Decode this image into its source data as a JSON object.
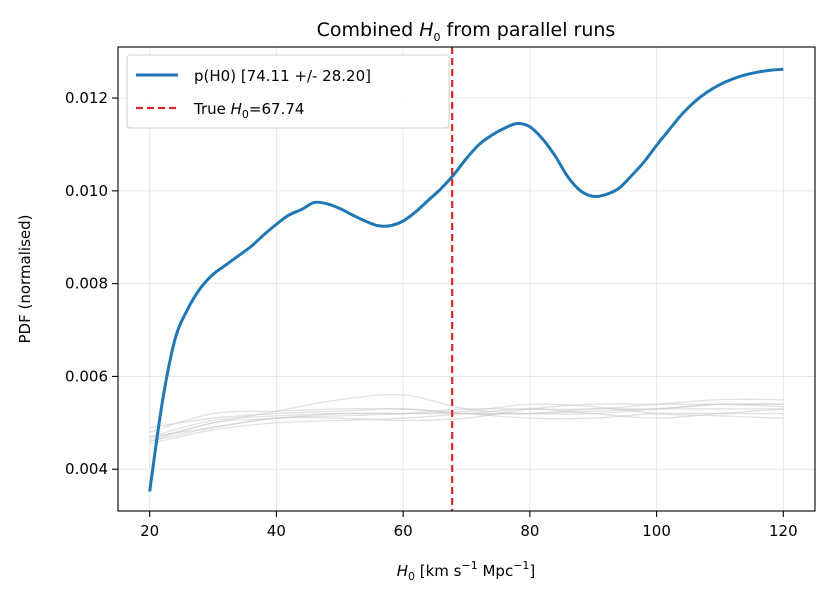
{
  "chart_data": {
    "type": "line",
    "title": {
      "prefix": "Combined ",
      "symbol": "H",
      "sub": "0",
      "suffix": " from parallel runs"
    },
    "xlabel": {
      "symbol": "H",
      "sub": "0",
      "mid": " [km s",
      "sup1": "−1",
      "mid2": " Mpc",
      "sup2": "−1",
      "end": "]"
    },
    "ylabel": "PDF (normalised)",
    "xlim": [
      15,
      125
    ],
    "ylim": [
      0.0031,
      0.0131
    ],
    "xticks": [
      20,
      40,
      60,
      80,
      100,
      120
    ],
    "yticks": [
      0.004,
      0.006,
      0.008,
      0.01,
      0.012
    ],
    "ytick_labels": [
      "0.004",
      "0.006",
      "0.008",
      "0.010",
      "0.012"
    ],
    "grid": true,
    "legend_position": "top-left",
    "true_h0": 67.74,
    "legend": {
      "combined": "p(H0) [74.11 +/- 28.20]",
      "true_prefix": "True ",
      "true_symbol": "H",
      "true_sub": "0",
      "true_suffix": "=67.74"
    },
    "colors": {
      "combined": "#1f77b4",
      "true_line": "#d62728",
      "runs": "#c8c8c8",
      "grid": "#e6e6e6"
    },
    "combined": {
      "x": [
        20,
        22,
        24,
        26,
        28,
        30,
        32,
        34,
        36,
        38,
        40,
        42,
        44,
        46,
        48,
        50,
        52,
        54,
        56,
        58,
        60,
        62,
        64,
        66,
        68,
        70,
        72,
        74,
        76,
        78,
        80,
        82,
        84,
        86,
        88,
        90,
        92,
        94,
        96,
        98,
        100,
        102,
        104,
        106,
        108,
        110,
        112,
        114,
        116,
        118,
        120
      ],
      "y": [
        0.00352,
        0.00545,
        0.0068,
        0.00745,
        0.0079,
        0.0082,
        0.0084,
        0.0086,
        0.0088,
        0.00905,
        0.00928,
        0.00948,
        0.0096,
        0.00975,
        0.00972,
        0.00962,
        0.00948,
        0.00935,
        0.00925,
        0.00925,
        0.00935,
        0.00955,
        0.0098,
        0.01005,
        0.01035,
        0.0107,
        0.011,
        0.0112,
        0.01135,
        0.01145,
        0.01138,
        0.01112,
        0.01075,
        0.0103,
        0.01,
        0.00988,
        0.00992,
        0.01005,
        0.01032,
        0.01062,
        0.01098,
        0.01132,
        0.01165,
        0.01192,
        0.01213,
        0.01229,
        0.01241,
        0.0125,
        0.01256,
        0.0126,
        0.01262
      ]
    },
    "runs": [
      {
        "x": [
          20,
          30,
          40,
          50,
          60,
          70,
          80,
          90,
          100,
          110,
          120
        ],
        "y": [
          0.00455,
          0.00485,
          0.005,
          0.00505,
          0.0051,
          0.0052,
          0.0053,
          0.0052,
          0.0051,
          0.0052,
          0.0053
        ]
      },
      {
        "x": [
          20,
          30,
          40,
          50,
          60,
          70,
          80,
          90,
          100,
          110,
          120
        ],
        "y": [
          0.0046,
          0.005,
          0.0051,
          0.0052,
          0.0052,
          0.0052,
          0.0052,
          0.0053,
          0.0053,
          0.0054,
          0.0054
        ]
      },
      {
        "x": [
          20,
          30,
          40,
          50,
          60,
          70,
          80,
          90,
          100,
          110,
          120
        ],
        "y": [
          0.0047,
          0.0049,
          0.0051,
          0.0051,
          0.00505,
          0.0051,
          0.0053,
          0.0054,
          0.0054,
          0.0054,
          0.00535
        ]
      },
      {
        "x": [
          20,
          30,
          40,
          50,
          60,
          70,
          80,
          90,
          100,
          110,
          120
        ],
        "y": [
          0.0048,
          0.0052,
          0.00525,
          0.0053,
          0.0053,
          0.0052,
          0.0051,
          0.0051,
          0.0052,
          0.0052,
          0.0052
        ]
      },
      {
        "x": [
          20,
          30,
          40,
          50,
          60,
          70,
          80,
          90,
          100,
          110,
          120
        ],
        "y": [
          0.00465,
          0.005,
          0.00525,
          0.0055,
          0.0056,
          0.0053,
          0.0052,
          0.0052,
          0.0053,
          0.0054,
          0.0054
        ]
      },
      {
        "x": [
          20,
          30,
          40,
          50,
          60,
          70,
          80,
          90,
          100,
          110,
          120
        ],
        "y": [
          0.0049,
          0.0051,
          0.0052,
          0.00525,
          0.0053,
          0.0052,
          0.0052,
          0.00525,
          0.0053,
          0.0053,
          0.0053
        ]
      },
      {
        "x": [
          20,
          30,
          40,
          50,
          60,
          70,
          80,
          90,
          100,
          110,
          120
        ],
        "y": [
          0.0047,
          0.00505,
          0.00515,
          0.0052,
          0.0052,
          0.00525,
          0.0054,
          0.00535,
          0.0052,
          0.00515,
          0.0051
        ]
      },
      {
        "x": [
          20,
          30,
          40,
          50,
          60,
          70,
          80,
          90,
          100,
          110,
          120
        ],
        "y": [
          0.0046,
          0.0049,
          0.0051,
          0.00515,
          0.0052,
          0.0053,
          0.0053,
          0.0053,
          0.0054,
          0.0055,
          0.0055
        ]
      }
    ]
  }
}
